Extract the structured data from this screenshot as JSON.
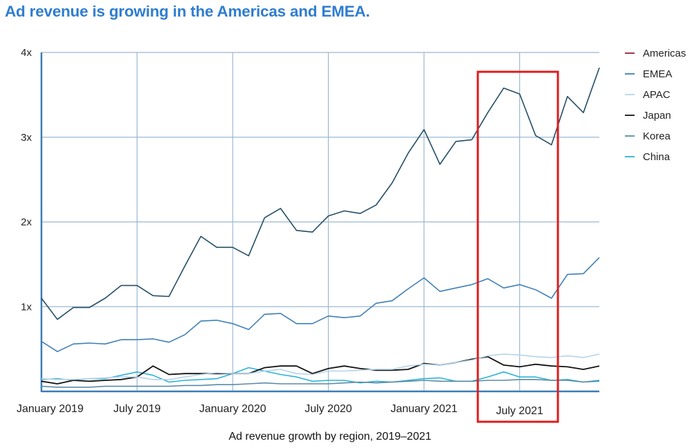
{
  "headline": "Ad revenue is growing in the Americas and EMEA.",
  "chart_data": {
    "type": "line",
    "title": "Ad revenue is growing in the Americas and EMEA.",
    "caption": "Ad revenue growth by region, 2019–2021",
    "y_ticks": [
      {
        "value": 1,
        "label": "1x"
      },
      {
        "value": 2,
        "label": "2x"
      },
      {
        "value": 3,
        "label": "3x"
      },
      {
        "value": 4,
        "label": "4x"
      }
    ],
    "ylim": [
      0,
      4
    ],
    "x_ticks": [
      {
        "index": 0,
        "label": "January 2019"
      },
      {
        "index": 6,
        "label": "July 2019"
      },
      {
        "index": 12,
        "label": "January 2020"
      },
      {
        "index": 18,
        "label": "July 2020"
      },
      {
        "index": 24,
        "label": "January 2021"
      },
      {
        "index": 30,
        "label": "July 2021"
      }
    ],
    "x_count": 36,
    "grid": true,
    "legend_position": "right",
    "highlight": {
      "from_index": 27.5,
      "to_index": 32.5,
      "color": "#e01b1b"
    },
    "series": [
      {
        "name": "Americas",
        "color": "#234d66",
        "legend_color": "#8e2438",
        "values": [
          1.1,
          0.85,
          0.99,
          0.99,
          1.1,
          1.25,
          1.25,
          1.13,
          1.12,
          1.48,
          1.83,
          1.7,
          1.7,
          1.6,
          2.05,
          2.16,
          1.9,
          1.88,
          2.07,
          2.13,
          2.1,
          2.2,
          2.46,
          2.81,
          3.09,
          2.68,
          2.95,
          2.97,
          3.29,
          3.58,
          3.51,
          3.02,
          2.91,
          3.48,
          3.29,
          3.82
        ]
      },
      {
        "name": "EMEA",
        "color": "#3f7fb8",
        "values": [
          0.59,
          0.47,
          0.56,
          0.57,
          0.56,
          0.61,
          0.61,
          0.62,
          0.58,
          0.67,
          0.83,
          0.84,
          0.8,
          0.73,
          0.91,
          0.92,
          0.8,
          0.8,
          0.89,
          0.87,
          0.89,
          1.04,
          1.07,
          1.21,
          1.34,
          1.18,
          1.22,
          1.26,
          1.33,
          1.22,
          1.26,
          1.2,
          1.1,
          1.38,
          1.39,
          1.58
        ]
      },
      {
        "name": "APAC",
        "color": "#b5d3ea",
        "values": [
          0.15,
          0.14,
          0.14,
          0.15,
          0.16,
          0.17,
          0.17,
          0.14,
          0.14,
          0.17,
          0.2,
          0.22,
          0.21,
          0.21,
          0.24,
          0.26,
          0.21,
          0.2,
          0.24,
          0.24,
          0.25,
          0.26,
          0.26,
          0.3,
          0.32,
          0.31,
          0.34,
          0.37,
          0.42,
          0.44,
          0.43,
          0.41,
          0.4,
          0.42,
          0.4,
          0.44
        ]
      },
      {
        "name": "Japan",
        "color": "#111111",
        "values": [
          0.12,
          0.09,
          0.13,
          0.12,
          0.13,
          0.14,
          0.17,
          0.3,
          0.2,
          0.21,
          0.21,
          0.21,
          0.21,
          0.21,
          0.28,
          0.3,
          0.3,
          0.21,
          0.27,
          0.3,
          0.27,
          0.25,
          0.25,
          0.26,
          0.33,
          0.31,
          0.34,
          0.38,
          0.41,
          0.31,
          0.29,
          0.32,
          0.3,
          0.29,
          0.26,
          0.3
        ]
      },
      {
        "name": "Korea",
        "color": "#5b8aa8",
        "values": [
          0.06,
          0.05,
          0.05,
          0.05,
          0.06,
          0.06,
          0.06,
          0.06,
          0.06,
          0.07,
          0.07,
          0.08,
          0.08,
          0.09,
          0.1,
          0.09,
          0.09,
          0.09,
          0.09,
          0.1,
          0.11,
          0.1,
          0.11,
          0.12,
          0.13,
          0.12,
          0.12,
          0.12,
          0.13,
          0.13,
          0.14,
          0.14,
          0.13,
          0.13,
          0.11,
          0.13
        ]
      },
      {
        "name": "China",
        "color": "#2bb3d6",
        "values": [
          0.14,
          0.15,
          0.13,
          0.15,
          0.15,
          0.19,
          0.23,
          0.19,
          0.11,
          0.13,
          0.14,
          0.15,
          0.21,
          0.28,
          0.24,
          0.2,
          0.17,
          0.12,
          0.13,
          0.13,
          0.1,
          0.12,
          0.11,
          0.13,
          0.15,
          0.16,
          0.12,
          0.12,
          0.17,
          0.23,
          0.17,
          0.17,
          0.13,
          0.14,
          0.11,
          0.12
        ]
      }
    ]
  }
}
